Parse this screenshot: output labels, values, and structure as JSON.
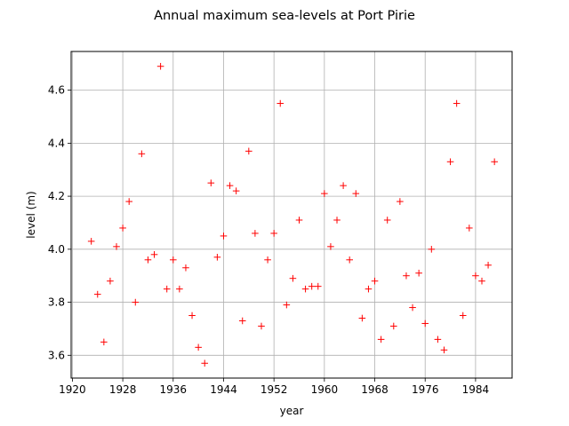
{
  "chart_data": {
    "type": "scatter",
    "title": "Annual maximum sea-levels at Port Pirie",
    "xlabel": "year",
    "ylabel": "level (m)",
    "xlim": [
      1919.8,
      1989.8
    ],
    "ylim": [
      3.514,
      4.746
    ],
    "xticks": [
      1920,
      1928,
      1936,
      1944,
      1952,
      1960,
      1968,
      1976,
      1984
    ],
    "yticks": [
      3.6,
      3.8,
      4.0,
      4.2,
      4.4,
      4.6
    ],
    "ytick_labels": [
      "3.6",
      "3.8",
      "4.0",
      "4.2",
      "4.4",
      "4.6"
    ],
    "grid": true,
    "marker": "+",
    "marker_color": "#ff0000",
    "points": [
      [
        1923,
        4.03
      ],
      [
        1924,
        3.83
      ],
      [
        1925,
        3.65
      ],
      [
        1926,
        3.88
      ],
      [
        1927,
        4.01
      ],
      [
        1928,
        4.08
      ],
      [
        1929,
        4.18
      ],
      [
        1930,
        3.8
      ],
      [
        1931,
        4.36
      ],
      [
        1932,
        3.96
      ],
      [
        1933,
        3.98
      ],
      [
        1934,
        4.69
      ],
      [
        1935,
        3.85
      ],
      [
        1936,
        3.96
      ],
      [
        1937,
        3.85
      ],
      [
        1938,
        3.93
      ],
      [
        1939,
        3.75
      ],
      [
        1940,
        3.63
      ],
      [
        1941,
        3.57
      ],
      [
        1942,
        4.25
      ],
      [
        1943,
        3.97
      ],
      [
        1944,
        4.05
      ],
      [
        1945,
        4.24
      ],
      [
        1946,
        4.22
      ],
      [
        1947,
        3.73
      ],
      [
        1948,
        4.37
      ],
      [
        1949,
        4.06
      ],
      [
        1950,
        3.71
      ],
      [
        1951,
        3.96
      ],
      [
        1952,
        4.06
      ],
      [
        1953,
        4.55
      ],
      [
        1954,
        3.79
      ],
      [
        1955,
        3.89
      ],
      [
        1956,
        4.11
      ],
      [
        1957,
        3.85
      ],
      [
        1958,
        3.86
      ],
      [
        1959,
        3.86
      ],
      [
        1960,
        4.21
      ],
      [
        1961,
        4.01
      ],
      [
        1962,
        4.11
      ],
      [
        1963,
        4.24
      ],
      [
        1964,
        3.96
      ],
      [
        1965,
        4.21
      ],
      [
        1966,
        3.74
      ],
      [
        1967,
        3.85
      ],
      [
        1968,
        3.88
      ],
      [
        1969,
        3.66
      ],
      [
        1970,
        4.11
      ],
      [
        1971,
        3.71
      ],
      [
        1972,
        4.18
      ],
      [
        1973,
        3.9
      ],
      [
        1974,
        3.78
      ],
      [
        1975,
        3.91
      ],
      [
        1976,
        3.72
      ],
      [
        1977,
        4.0
      ],
      [
        1978,
        3.66
      ],
      [
        1979,
        3.62
      ],
      [
        1980,
        4.33
      ],
      [
        1981,
        4.55
      ],
      [
        1982,
        3.75
      ],
      [
        1983,
        4.08
      ],
      [
        1984,
        3.9
      ],
      [
        1985,
        3.88
      ],
      [
        1986,
        3.94
      ],
      [
        1987,
        4.33
      ]
    ]
  }
}
